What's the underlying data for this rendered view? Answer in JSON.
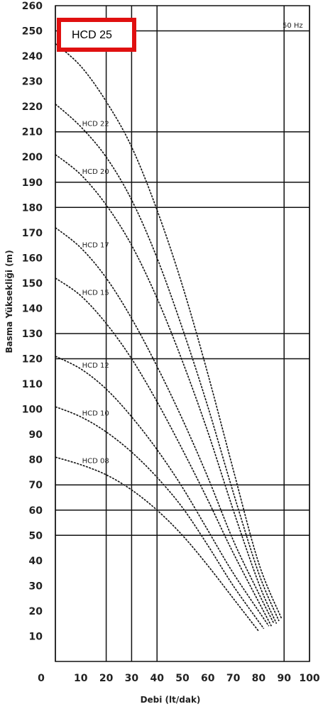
{
  "chart_data": {
    "type": "line",
    "title": "",
    "xlabel": "Debi (lt/dak)",
    "ylabel": "Basma Yüksekliği (m)",
    "xlim": [
      0,
      100
    ],
    "ylim": [
      0,
      260
    ],
    "x_ticks": [
      0,
      10,
      20,
      30,
      40,
      50,
      60,
      70,
      80,
      90,
      100
    ],
    "y_ticks": [
      10,
      20,
      30,
      40,
      50,
      60,
      70,
      80,
      90,
      100,
      110,
      120,
      130,
      140,
      150,
      160,
      170,
      180,
      190,
      200,
      210,
      220,
      230,
      240,
      250,
      260
    ],
    "v_gridlines": [
      0,
      20,
      30,
      40,
      90,
      100
    ],
    "h_gridlines": [
      50,
      60,
      70,
      120,
      130,
      180,
      190,
      210,
      250
    ],
    "frequency_label": "50 Hz",
    "highlight_label": "HCD 25",
    "series": [
      {
        "name": "HCD 08",
        "points": [
          [
            0,
            81
          ],
          [
            10,
            78
          ],
          [
            20,
            74
          ],
          [
            30,
            68
          ],
          [
            40,
            60
          ],
          [
            50,
            50
          ],
          [
            60,
            38
          ],
          [
            70,
            25
          ],
          [
            80,
            12
          ]
        ]
      },
      {
        "name": "HCD 10",
        "points": [
          [
            0,
            101
          ],
          [
            10,
            97
          ],
          [
            20,
            91
          ],
          [
            30,
            83
          ],
          [
            40,
            73
          ],
          [
            50,
            61
          ],
          [
            60,
            46
          ],
          [
            70,
            30
          ],
          [
            82,
            13
          ]
        ]
      },
      {
        "name": "HCD 12",
        "points": [
          [
            0,
            121
          ],
          [
            10,
            116
          ],
          [
            20,
            108
          ],
          [
            30,
            97
          ],
          [
            40,
            84
          ],
          [
            50,
            69
          ],
          [
            60,
            52
          ],
          [
            70,
            35
          ],
          [
            84,
            14
          ]
        ]
      },
      {
        "name": "HCD 15",
        "points": [
          [
            0,
            152
          ],
          [
            10,
            145
          ],
          [
            20,
            134
          ],
          [
            30,
            120
          ],
          [
            40,
            103
          ],
          [
            50,
            84
          ],
          [
            60,
            64
          ],
          [
            70,
            43
          ],
          [
            85,
            14
          ]
        ]
      },
      {
        "name": "HCD 17",
        "points": [
          [
            0,
            172
          ],
          [
            10,
            164
          ],
          [
            20,
            152
          ],
          [
            30,
            136
          ],
          [
            40,
            117
          ],
          [
            50,
            96
          ],
          [
            60,
            73
          ],
          [
            70,
            48
          ],
          [
            80,
            27
          ],
          [
            86,
            15
          ]
        ]
      },
      {
        "name": "HCD 20",
        "points": [
          [
            0,
            201
          ],
          [
            10,
            193
          ],
          [
            20,
            181
          ],
          [
            30,
            165
          ],
          [
            40,
            144
          ],
          [
            50,
            119
          ],
          [
            60,
            91
          ],
          [
            70,
            60
          ],
          [
            80,
            31
          ],
          [
            87,
            15
          ]
        ]
      },
      {
        "name": "HCD 22",
        "points": [
          [
            0,
            221
          ],
          [
            10,
            212
          ],
          [
            20,
            200
          ],
          [
            30,
            183
          ],
          [
            40,
            160
          ],
          [
            50,
            132
          ],
          [
            60,
            101
          ],
          [
            70,
            67
          ],
          [
            80,
            35
          ],
          [
            88,
            16
          ]
        ]
      },
      {
        "name": "HCD 25",
        "points": [
          [
            0,
            245
          ],
          [
            10,
            236
          ],
          [
            20,
            222
          ],
          [
            30,
            204
          ],
          [
            40,
            179
          ],
          [
            50,
            149
          ],
          [
            60,
            114
          ],
          [
            70,
            76
          ],
          [
            80,
            39
          ],
          [
            89,
            17
          ]
        ]
      }
    ]
  }
}
